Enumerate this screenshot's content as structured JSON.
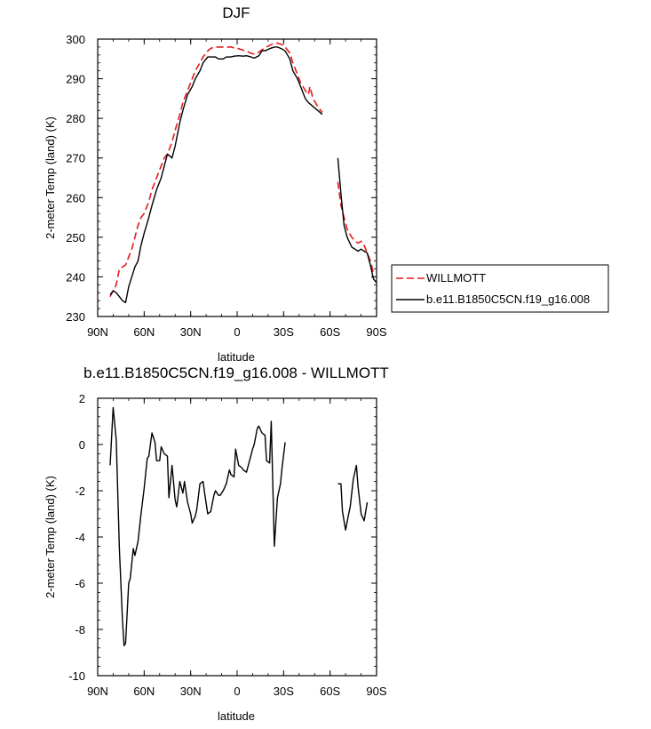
{
  "chart_data": [
    {
      "type": "line",
      "title": "DJF",
      "xlabel": "latitude",
      "ylabel": "2-meter Temp (land) (K)",
      "xlim": [
        90,
        -90
      ],
      "ylim": [
        230,
        300
      ],
      "x_ticks": [
        90,
        60,
        30,
        0,
        -30,
        -60,
        -90
      ],
      "x_tick_labels": [
        "90N",
        "60N",
        "30N",
        "0",
        "30S",
        "60S",
        "90S"
      ],
      "y_ticks": [
        230,
        240,
        250,
        260,
        270,
        280,
        290,
        300
      ],
      "y_tick_labels": [
        "230",
        "240",
        "250",
        "260",
        "270",
        "280",
        "290",
        "300"
      ],
      "legend_placement": "right",
      "series": [
        {
          "name": "WILLMOTT",
          "color": "#e41a1c",
          "dash": "dashed",
          "segments": [
            [
              [
                82,
                235
              ],
              [
                80,
                236.5
              ],
              [
                78,
                238
              ],
              [
                76,
                242
              ],
              [
                74,
                242.5
              ],
              [
                72,
                243
              ],
              [
                70,
                245
              ],
              [
                68,
                247
              ],
              [
                66,
                250
              ],
              [
                64,
                253
              ],
              [
                62,
                255
              ],
              [
                60,
                256
              ],
              [
                57,
                259
              ],
              [
                55,
                262
              ],
              [
                52,
                265
              ],
              [
                49,
                268
              ],
              [
                47,
                270
              ],
              [
                45,
                271
              ],
              [
                42,
                274
              ],
              [
                40,
                277
              ],
              [
                37,
                281
              ],
              [
                35,
                284
              ],
              [
                32,
                287
              ],
              [
                29,
                290
              ],
              [
                27,
                292
              ],
              [
                24,
                294
              ],
              [
                22,
                295.5
              ],
              [
                19,
                297
              ],
              [
                17,
                297.7
              ],
              [
                14,
                298
              ],
              [
                12,
                298
              ],
              [
                9,
                298
              ],
              [
                7,
                298
              ],
              [
                4,
                298
              ],
              [
                2,
                297.8
              ],
              [
                -1,
                297.6
              ],
              [
                -4,
                297.2
              ],
              [
                -6,
                297
              ],
              [
                -9,
                296.4
              ],
              [
                -11,
                296.2
              ],
              [
                -14,
                296.7
              ],
              [
                -16,
                297.3
              ],
              [
                -19,
                298
              ],
              [
                -21,
                298.4
              ],
              [
                -24,
                299
              ],
              [
                -26,
                299
              ],
              [
                -29,
                298.6
              ],
              [
                -31,
                298
              ],
              [
                -34,
                296.5
              ],
              [
                -36,
                294
              ],
              [
                -39,
                291
              ],
              [
                -41,
                289
              ],
              [
                -44,
                287
              ],
              [
                -46,
                286
              ],
              [
                -47,
                288
              ],
              [
                -49,
                285
              ],
              [
                -52,
                283
              ],
              [
                -55,
                281.5
              ]
            ],
            [
              [
                -65,
                264
              ],
              [
                -67,
                258
              ],
              [
                -69,
                255
              ],
              [
                -71,
                252
              ],
              [
                -74,
                250
              ],
              [
                -76,
                249
              ],
              [
                -78,
                248.5
              ],
              [
                -80,
                249
              ],
              [
                -82,
                248
              ],
              [
                -84,
                246
              ],
              [
                -86,
                244
              ],
              [
                -88,
                241
              ]
            ]
          ]
        },
        {
          "name": "b.e11.B1850C5CN.f19_g16.008",
          "color": "#000000",
          "dash": "solid",
          "segments": [
            [
              [
                82,
                235.5
              ],
              [
                80,
                236.5
              ],
              [
                78,
                236
              ],
              [
                76,
                235
              ],
              [
                74,
                234
              ],
              [
                72,
                233.5
              ],
              [
                70,
                237.5
              ],
              [
                68,
                240
              ],
              [
                66,
                242.5
              ],
              [
                64,
                244
              ],
              [
                62,
                248
              ],
              [
                60,
                251
              ],
              [
                57,
                255
              ],
              [
                55,
                258
              ],
              [
                52,
                262
              ],
              [
                49,
                265
              ],
              [
                47,
                268
              ],
              [
                45,
                271
              ],
              [
                42,
                270
              ],
              [
                40,
                273
              ],
              [
                37,
                279
              ],
              [
                35,
                282
              ],
              [
                32,
                286
              ],
              [
                29,
                288
              ],
              [
                27,
                290
              ],
              [
                24,
                292
              ],
              [
                22,
                294
              ],
              [
                19,
                295.5
              ],
              [
                17,
                295.5
              ],
              [
                14,
                295.5
              ],
              [
                12,
                295
              ],
              [
                9,
                295
              ],
              [
                7,
                295.5
              ],
              [
                4,
                295.5
              ],
              [
                2,
                295.7
              ],
              [
                -1,
                295.8
              ],
              [
                -4,
                295.7
              ],
              [
                -6,
                295.8
              ],
              [
                -9,
                295.5
              ],
              [
                -11,
                295.2
              ],
              [
                -14,
                295.8
              ],
              [
                -16,
                297
              ],
              [
                -19,
                297.2
              ],
              [
                -21,
                297.6
              ],
              [
                -24,
                298
              ],
              [
                -26,
                298
              ],
              [
                -29,
                297.5
              ],
              [
                -31,
                297
              ],
              [
                -34,
                295
              ],
              [
                -36,
                292
              ],
              [
                -39,
                290
              ],
              [
                -41,
                288
              ],
              [
                -44,
                285
              ],
              [
                -46,
                284
              ],
              [
                -49,
                283
              ],
              [
                -52,
                282
              ],
              [
                -55,
                281
              ]
            ],
            [
              [
                -65,
                270
              ],
              [
                -67,
                261
              ],
              [
                -69,
                253
              ],
              [
                -71,
                250
              ],
              [
                -74,
                247.5
              ],
              [
                -76,
                247
              ],
              [
                -78,
                246.5
              ],
              [
                -80,
                247
              ],
              [
                -82,
                246.5
              ],
              [
                -84,
                246
              ],
              [
                -86,
                243
              ],
              [
                -88,
                239.5
              ],
              [
                -90,
                238.5
              ]
            ]
          ]
        }
      ]
    },
    {
      "type": "line",
      "title": "b.e11.B1850C5CN.f19_g16.008 - WILLMOTT",
      "xlabel": "latitude",
      "ylabel": "2-meter Temp (land) (K)",
      "xlim": [
        90,
        -90
      ],
      "ylim": [
        -10,
        2
      ],
      "x_ticks": [
        90,
        60,
        30,
        0,
        -30,
        -60,
        -90
      ],
      "x_tick_labels": [
        "90N",
        "60N",
        "30N",
        "0",
        "30S",
        "60S",
        "90S"
      ],
      "y_ticks": [
        -10,
        -8,
        -6,
        -4,
        -2,
        0,
        2
      ],
      "y_tick_labels": [
        "-10",
        "-8",
        "-6",
        "-4",
        "-2",
        "0",
        "2"
      ],
      "series": [
        {
          "color": "#000000",
          "dash": "solid",
          "segments": [
            [
              [
                82,
                -0.9
              ],
              [
                80,
                1.6
              ],
              [
                78,
                0.2
              ],
              [
                76,
                -4.5
              ],
              [
                74,
                -7.6
              ],
              [
                73,
                -8.7
              ],
              [
                72,
                -8.6
              ],
              [
                70,
                -6
              ],
              [
                69,
                -5.8
              ],
              [
                67,
                -4.5
              ],
              [
                66,
                -4.8
              ],
              [
                64,
                -4.2
              ],
              [
                62,
                -3
              ],
              [
                60,
                -1.9
              ],
              [
                58,
                -0.6
              ],
              [
                57,
                -0.5
              ],
              [
                55,
                0.5
              ],
              [
                53,
                0.1
              ],
              [
                52,
                -0.7
              ],
              [
                50,
                -0.7
              ],
              [
                49,
                -0.1
              ],
              [
                47,
                -0.4
              ],
              [
                45,
                -0.5
              ],
              [
                44,
                -2.3
              ],
              [
                42,
                -0.9
              ],
              [
                40,
                -2.4
              ],
              [
                39,
                -2.7
              ],
              [
                37,
                -1.6
              ],
              [
                35,
                -2.1
              ],
              [
                34,
                -1.6
              ],
              [
                32,
                -2.5
              ],
              [
                30,
                -3
              ],
              [
                29,
                -3.4
              ],
              [
                27,
                -3.1
              ],
              [
                26,
                -2.8
              ],
              [
                24,
                -1.7
              ],
              [
                22,
                -1.6
              ],
              [
                21,
                -2.1
              ],
              [
                19,
                -3
              ],
              [
                17,
                -2.9
              ],
              [
                15,
                -2.2
              ],
              [
                14,
                -2
              ],
              [
                12,
                -2.2
              ],
              [
                11,
                -2.2
              ],
              [
                9,
                -2
              ],
              [
                7,
                -1.7
              ],
              [
                5,
                -1.1
              ],
              [
                4,
                -1.3
              ],
              [
                2,
                -1.4
              ],
              [
                1,
                -0.2
              ],
              [
                -1,
                -0.9
              ],
              [
                -3,
                -1
              ],
              [
                -4,
                -1.1
              ],
              [
                -6,
                -1.2
              ],
              [
                -8,
                -0.7
              ],
              [
                -10,
                -0.2
              ],
              [
                -11,
                0
              ],
              [
                -13,
                0.7
              ],
              [
                -14,
                0.8
              ],
              [
                -16,
                0.5
              ],
              [
                -18,
                0.4
              ],
              [
                -19,
                -0.7
              ],
              [
                -21,
                -0.8
              ],
              [
                -22,
                1
              ],
              [
                -24,
                -4.4
              ],
              [
                -26,
                -2.3
              ],
              [
                -28,
                -1.7
              ],
              [
                -29,
                -1
              ],
              [
                -31,
                0.1
              ]
            ],
            [
              [
                -65,
                -1.7
              ],
              [
                -67,
                -1.7
              ],
              [
                -68,
                -2.9
              ],
              [
                -70,
                -3.7
              ],
              [
                -72,
                -3
              ],
              [
                -73,
                -2.7
              ],
              [
                -75,
                -1.5
              ],
              [
                -77,
                -0.9
              ],
              [
                -78,
                -1.8
              ],
              [
                -80,
                -3
              ],
              [
                -82,
                -3.3
              ],
              [
                -84,
                -2.5
              ]
            ]
          ]
        }
      ]
    }
  ]
}
